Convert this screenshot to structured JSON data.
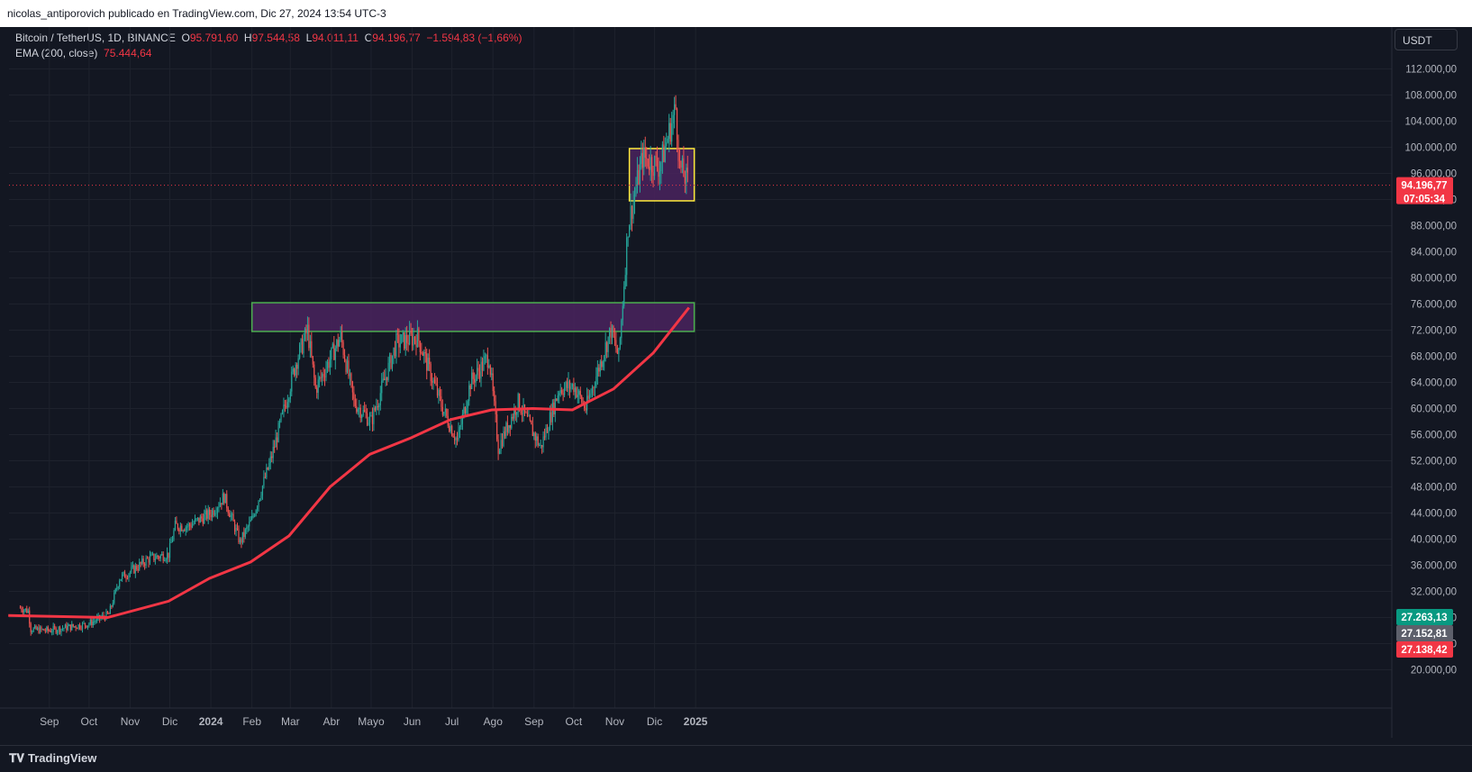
{
  "header": {
    "published": "nicolas_antiporovich publicado en TradingView.com, Dic 27, 2024 13:54 UTC-3"
  },
  "legend": {
    "symbol": "Bitcoin / TetherUS, 1D, BINANCE",
    "o_label": "O",
    "o": "95.791,60",
    "h_label": "H",
    "h": "97.544,58",
    "l_label": "L",
    "l": "94.011,11",
    "c_label": "C",
    "c": "94.196,77",
    "change": "−1.594,83 (−1,66%)",
    "ema_label": "EMA (200, close)",
    "ema": "75.444,64"
  },
  "currency": "USDT",
  "footer": {
    "brand": "TradingView"
  },
  "price_labels": {
    "last": "94.196,77",
    "countdown": "07:05:34",
    "l1": "27.263,13",
    "l2": "27.152,81",
    "l3": "27.138,42"
  },
  "colors": {
    "up": "#26a69a",
    "down": "#ef5350",
    "ema": "#f23645",
    "zone_fill": "#4a235e",
    "green_box": "#4caf50",
    "yellow_box": "#ffeb3b"
  },
  "chart_data": {
    "type": "candlestick",
    "title": "Bitcoin / TetherUS, 1D, BINANCE",
    "y_ticks": [
      20000,
      24000,
      28000,
      32000,
      36000,
      40000,
      44000,
      48000,
      52000,
      56000,
      60000,
      64000,
      68000,
      72000,
      76000,
      80000,
      84000,
      88000,
      92000,
      96000,
      100000,
      104000,
      108000,
      112000
    ],
    "y_tick_labels": [
      "20.000,00",
      "24.000,00",
      "28.000,00",
      "32.000,00",
      "36.000,00",
      "40.000,00",
      "44.000,00",
      "48.000,00",
      "52.000,00",
      "56.000,00",
      "60.000,00",
      "64.000,00",
      "68.000,00",
      "72.000,00",
      "76.000,00",
      "80.000,00",
      "84.000,00",
      "88.000,00",
      "92.000,00",
      "96.000,00",
      "100.000,00",
      "104.000,00",
      "108.000,00",
      "112.000,00"
    ],
    "x_ticks": [
      "Sep",
      "Oct",
      "Nov",
      "Dic",
      "2024",
      "Feb",
      "Mar",
      "Abr",
      "Mayo",
      "Jun",
      "Jul",
      "Ago",
      "Sep",
      "Oct",
      "Nov",
      "Dic",
      "2025"
    ],
    "close_series": {
      "name": "BTCUSDT close",
      "points": [
        [
          "2023-08-10",
          29500
        ],
        [
          "2023-08-16",
          29000
        ],
        [
          "2023-08-18",
          26200
        ],
        [
          "2023-08-31",
          26000
        ],
        [
          "2023-09-15",
          26500
        ],
        [
          "2023-09-30",
          27000
        ],
        [
          "2023-10-16",
          28500
        ],
        [
          "2023-10-24",
          34000
        ],
        [
          "2023-11-01",
          35000
        ],
        [
          "2023-11-15",
          37000
        ],
        [
          "2023-11-30",
          37700
        ],
        [
          "2023-12-05",
          42000
        ],
        [
          "2023-12-15",
          42000
        ],
        [
          "2024-01-01",
          44000
        ],
        [
          "2024-01-11",
          46500
        ],
        [
          "2024-01-23",
          39500
        ],
        [
          "2024-02-01",
          43000
        ],
        [
          "2024-02-15",
          52000
        ],
        [
          "2024-02-28",
          62000
        ],
        [
          "2024-03-05",
          67000
        ],
        [
          "2024-03-14",
          72000
        ],
        [
          "2024-03-20",
          63000
        ],
        [
          "2024-04-08",
          71000
        ],
        [
          "2024-04-18",
          61000
        ],
        [
          "2024-05-01",
          58000
        ],
        [
          "2024-05-20",
          70000
        ],
        [
          "2024-06-05",
          71000
        ],
        [
          "2024-06-24",
          60000
        ],
        [
          "2024-07-05",
          55000
        ],
        [
          "2024-07-15",
          64000
        ],
        [
          "2024-07-29",
          68000
        ],
        [
          "2024-08-05",
          54000
        ],
        [
          "2024-08-20",
          61000
        ],
        [
          "2024-09-06",
          54000
        ],
        [
          "2024-09-20",
          63000
        ],
        [
          "2024-10-01",
          63500
        ],
        [
          "2024-10-10",
          60000
        ],
        [
          "2024-10-29",
          72000
        ],
        [
          "2024-11-04",
          67800
        ],
        [
          "2024-11-11",
          88000
        ],
        [
          "2024-11-22",
          98500
        ],
        [
          "2024-12-05",
          97000
        ],
        [
          "2024-12-17",
          106000
        ],
        [
          "2024-12-20",
          97000
        ],
        [
          "2024-12-27",
          94196.77
        ]
      ]
    },
    "ema_series": {
      "name": "EMA (200, close)",
      "points": [
        [
          "2023-08-01",
          28300
        ],
        [
          "2023-10-15",
          28000
        ],
        [
          "2023-11-30",
          30500
        ],
        [
          "2023-12-31",
          34000
        ],
        [
          "2024-01-31",
          36500
        ],
        [
          "2024-02-29",
          40500
        ],
        [
          "2024-03-31",
          48000
        ],
        [
          "2024-04-30",
          53000
        ],
        [
          "2024-05-31",
          55500
        ],
        [
          "2024-06-30",
          58300
        ],
        [
          "2024-07-31",
          59800
        ],
        [
          "2024-08-31",
          60000
        ],
        [
          "2024-09-30",
          59800
        ],
        [
          "2024-10-31",
          63000
        ],
        [
          "2024-11-30",
          68500
        ],
        [
          "2024-12-27",
          75444.64
        ]
      ]
    },
    "annotations": [
      {
        "type": "rectangle",
        "border": "green",
        "y_range": [
          71800,
          76200
        ],
        "x_range": [
          "2024-02-01",
          "2024-12-31"
        ]
      },
      {
        "type": "rectangle",
        "border": "yellow",
        "y_range": [
          91800,
          99800
        ],
        "x_range": [
          "2024-11-12",
          "2024-12-31"
        ]
      },
      {
        "type": "hline",
        "style": "dotted",
        "value": 94196.77
      }
    ],
    "ylim": [
      17000,
      114500
    ],
    "grid": true
  }
}
